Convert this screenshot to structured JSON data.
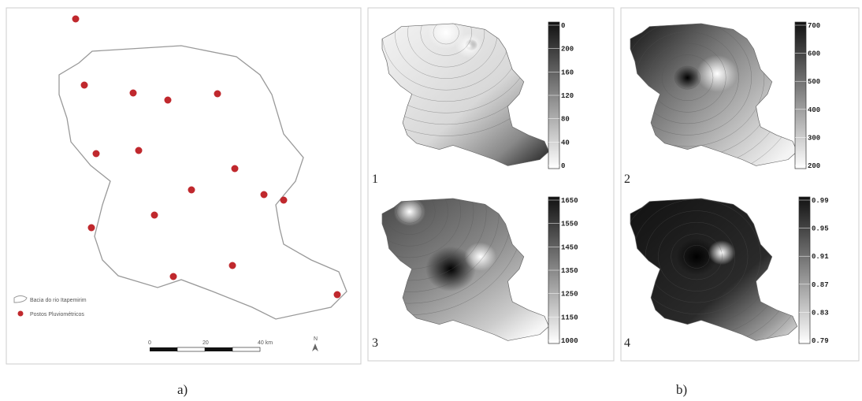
{
  "panel_a": {
    "legend": [
      "Bacia do rio Itapemirim",
      "Postos Pluviométricos"
    ],
    "scale": [
      "0",
      "20",
      "40 km"
    ],
    "north": "N",
    "caption": "a)"
  },
  "panel_b": {
    "maps": [
      {
        "number": "1",
        "colorbar": [
          "0",
          "200",
          "160",
          "120",
          "80",
          "40",
          "0"
        ]
      },
      {
        "number": "2",
        "colorbar": [
          "700",
          "600",
          "500",
          "400",
          "300",
          "200"
        ]
      },
      {
        "number": "3",
        "colorbar": [
          "1650",
          "1550",
          "1450",
          "1350",
          "1250",
          "1150",
          "1000"
        ]
      },
      {
        "number": "4",
        "colorbar": [
          "0.99",
          "0.95",
          "0.91",
          "0.87",
          "0.83",
          "0.79"
        ]
      }
    ],
    "caption": "b)"
  }
}
